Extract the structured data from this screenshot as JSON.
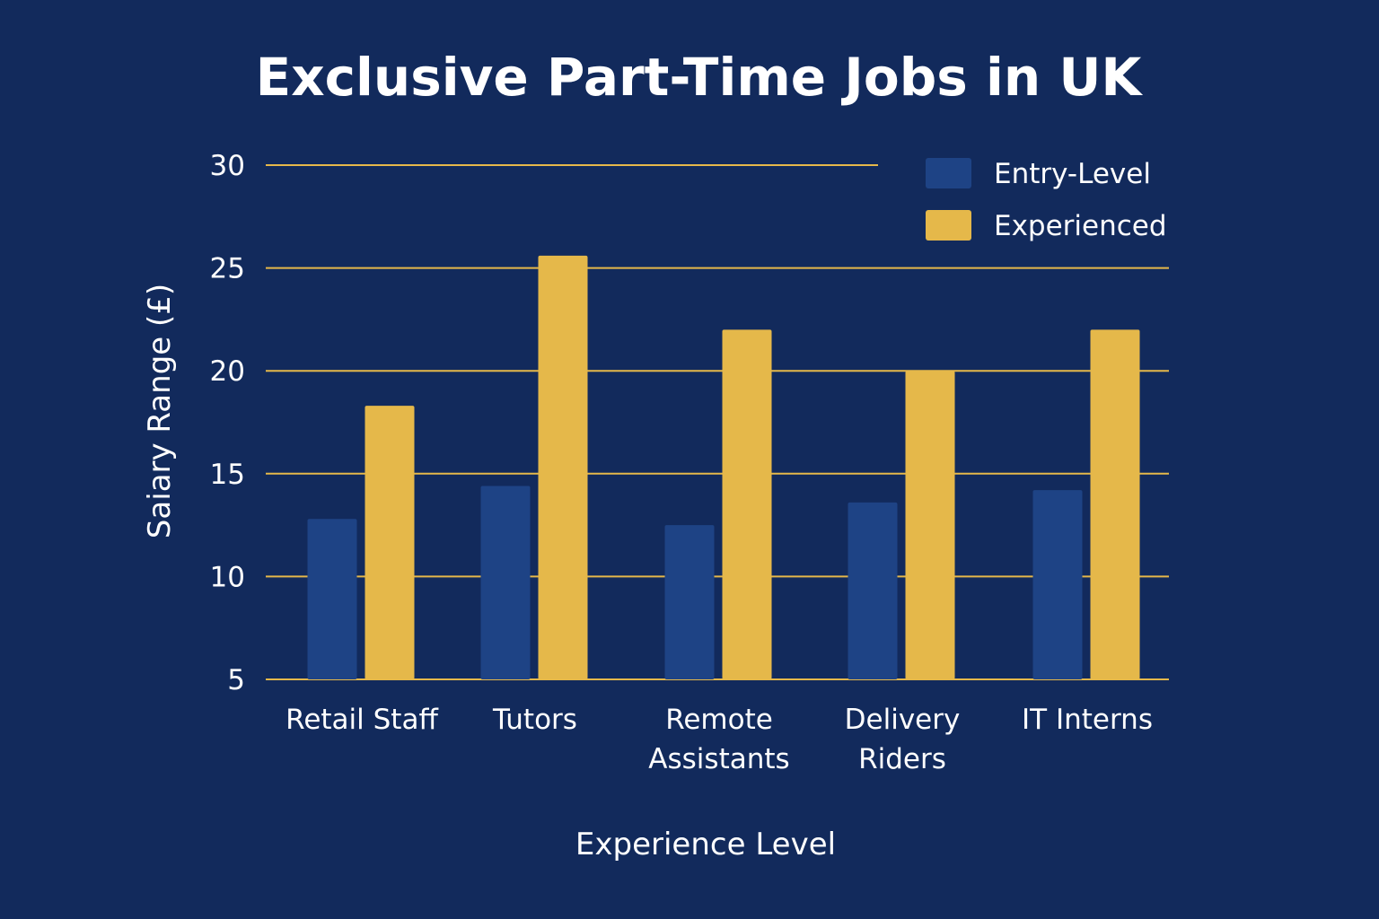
{
  "chart_data": {
    "type": "bar",
    "title": "Exclusive Part-Time Jobs in UK",
    "xlabel": "Experience Level",
    "ylabel": "Saiary Range (£)",
    "categories": [
      "Retail Staff",
      "Tutors",
      "Remote Assistants",
      "Delivery Riders",
      "IT Interns"
    ],
    "category_lines": [
      [
        "Retail Staff"
      ],
      [
        "Tutors"
      ],
      [
        "Remote",
        "Assistants"
      ],
      [
        "Delivery",
        "Riders"
      ],
      [
        "IT Interns"
      ]
    ],
    "series": [
      {
        "name": "Entry-Level",
        "color": "#1e4385",
        "values": [
          12.8,
          14.4,
          12.5,
          13.6,
          14.2
        ]
      },
      {
        "name": "Experienced",
        "color": "#e5b84a",
        "values": [
          18.3,
          25.6,
          22.0,
          20.0,
          22.0
        ]
      }
    ],
    "ylim": [
      5,
      30
    ],
    "yticks": [
      5,
      10,
      15,
      20,
      25,
      30
    ],
    "grid": true,
    "grid_color": "#e5b84a",
    "legend_position": "top-right",
    "background": "#122a5c"
  }
}
